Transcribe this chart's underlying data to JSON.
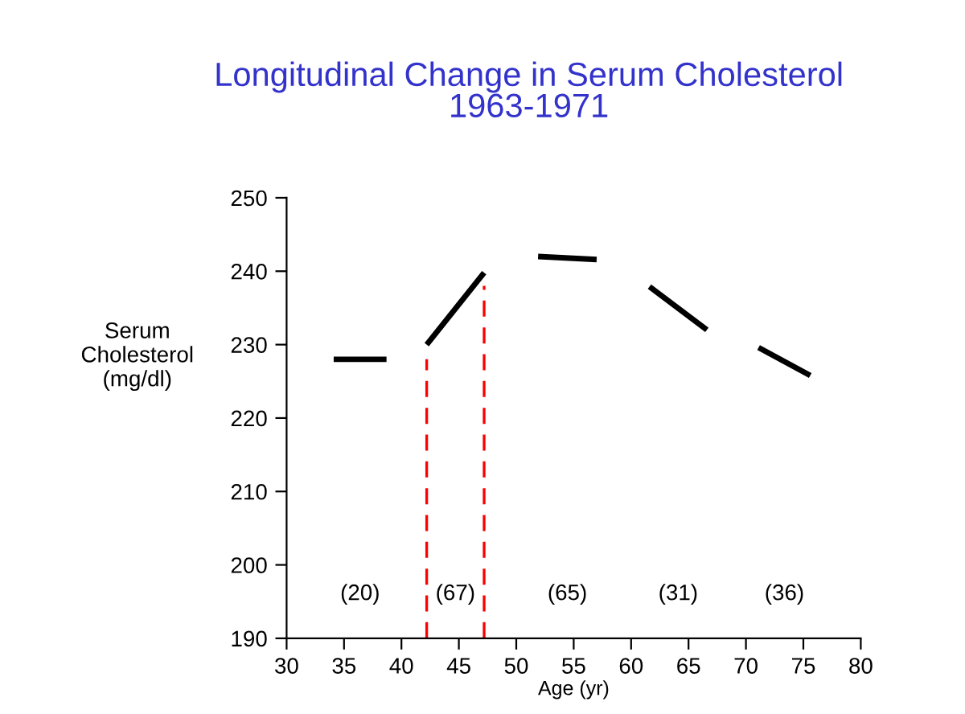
{
  "chart_data": {
    "type": "line",
    "title": "Longitudinal Change in Serum Cholesterol\n1963-1971",
    "xlabel": "Age (yr)",
    "ylabel": "Serum\nCholesterol\n(mg/dl)",
    "series": [
      {
        "color": "#000000",
        "x": [
          34.1,
          38.7
        ],
        "values": [
          228,
          228
        ]
      },
      {
        "color": "#000000",
        "x": [
          42.2,
          47.2
        ],
        "values": [
          230,
          239.8
        ]
      },
      {
        "color": "#000000",
        "x": [
          51.9,
          57.0
        ],
        "values": [
          242,
          241.6
        ]
      },
      {
        "color": "#000000",
        "x": [
          61.6,
          66.6
        ],
        "values": [
          237.9,
          232
        ]
      },
      {
        "color": "#000000",
        "x": [
          71.1,
          75.6
        ],
        "values": [
          229.6,
          225.8
        ]
      },
      {
        "color": "#ff0000",
        "line_style": "dashed",
        "x": [
          42.2,
          42.2
        ],
        "values": [
          190,
          228
        ]
      },
      {
        "color": "#ff0000",
        "line_style": "dashed",
        "x": [
          47.2,
          47.2
        ],
        "values": [
          190,
          238
        ]
      }
    ],
    "annotations": [
      "(20)",
      "(67)",
      "(65)",
      "(31)",
      "(36)"
    ],
    "xlim": [
      30,
      80
    ],
    "xticks": [
      30,
      35,
      40,
      45,
      50,
      55,
      60,
      65,
      70,
      75,
      80
    ],
    "ylim": [
      190,
      250
    ],
    "yticks": [
      190,
      200,
      210,
      220,
      230,
      240,
      250
    ],
    "grid": false,
    "legend": false,
    "marker": "none",
    "line_style": "solid"
  }
}
